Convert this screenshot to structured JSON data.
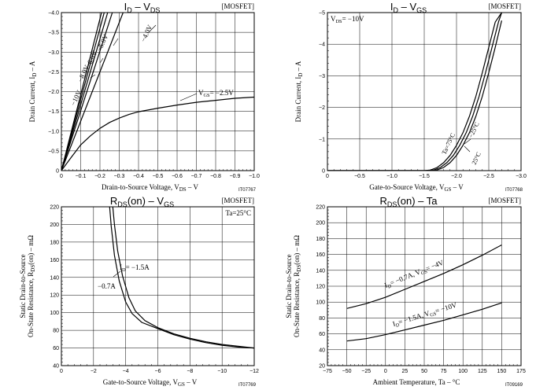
{
  "chart_data": [
    {
      "type": "line",
      "title_main": "I",
      "title_sub1": "D",
      "title_mid": " – V",
      "title_sub2": "DS",
      "tag": "[MOSFET]",
      "xlabel": "Drain-to-Source Voltage, V",
      "xlabel_sub": "DS",
      "xlabel_unit": " – V",
      "ylabel": "Drain Current, I",
      "ylabel_sub": "D",
      "ylabel_unit": " – A",
      "code": "IT07767",
      "xlim": [
        0,
        -1.0
      ],
      "ylim": [
        0,
        -4.0
      ],
      "xticks": [
        "0",
        "−0.1",
        "−0.2",
        "−0.3",
        "−0.4",
        "−0.5",
        "−0.6",
        "−0.7",
        "−0.8",
        "−0.9",
        "−1.0"
      ],
      "yticks": [
        "0",
        "−0.5",
        "−1.0",
        "−1.5",
        "−2.0",
        "−2.5",
        "−3.0",
        "−3.5",
        "−4.0"
      ],
      "series": [
        {
          "name": "−10V",
          "x": [
            0,
            -0.208
          ],
          "y": [
            0,
            -4.0
          ]
        },
        {
          "name": "−8.0V",
          "x": [
            0,
            -0.222
          ],
          "y": [
            0,
            -4.0
          ]
        },
        {
          "name": "−6.0V",
          "x": [
            0,
            -0.24
          ],
          "y": [
            0,
            -4.0
          ]
        },
        {
          "name": "−5.0V",
          "x": [
            0,
            -0.264
          ],
          "y": [
            0,
            -4.0
          ]
        },
        {
          "name": "−4.0V",
          "x": [
            0,
            -0.32
          ],
          "y": [
            0,
            -4.0
          ]
        },
        {
          "name": "−2.5V",
          "x": [
            0,
            -0.05,
            -0.1,
            -0.15,
            -0.2,
            -0.25,
            -0.3,
            -0.35,
            -0.4,
            -0.5,
            -0.6,
            -0.7,
            -0.8,
            -0.9,
            -1.0
          ],
          "y": [
            0,
            -0.33,
            -0.65,
            -0.88,
            -1.07,
            -1.22,
            -1.33,
            -1.42,
            -1.49,
            -1.58,
            -1.66,
            -1.73,
            -1.78,
            -1.83,
            -1.86
          ]
        }
      ],
      "labels": [
        {
          "text": "V",
          "sub": "GS",
          "rest": "= −2.5V"
        },
        {
          "text": "−10V"
        },
        {
          "text": "−8.0V"
        },
        {
          "text": "−6.0V"
        },
        {
          "text": "−5.0V"
        },
        {
          "text": "−4.0V"
        }
      ]
    },
    {
      "type": "line",
      "title_main": "I",
      "title_sub1": "D",
      "title_mid": " – V",
      "title_sub2": "GS",
      "tag": "[MOSFET]",
      "annotation": {
        "text": "V",
        "sub": "DS",
        "rest": "= −10V"
      },
      "xlabel": "Gate-to-Source Voltage, V",
      "xlabel_sub": "GS",
      "xlabel_unit": " – V",
      "ylabel": "Drain Current, I",
      "ylabel_sub": "D",
      "ylabel_unit": " – A",
      "code": "IT07768",
      "xlim": [
        0,
        -3.0
      ],
      "ylim": [
        0,
        -5
      ],
      "xticks": [
        "0",
        "−0.5",
        "−1.0",
        "−1.5",
        "−2.0",
        "−2.5",
        "−3.0"
      ],
      "yticks": [
        "0",
        "−1",
        "−2",
        "−3",
        "−4",
        "−5"
      ],
      "series": [
        {
          "name": "Ta=75°C",
          "x": [
            0,
            -1.5,
            -1.6,
            -1.7,
            -1.8,
            -1.9,
            -2.0,
            -2.1,
            -2.2,
            -2.3,
            -2.4,
            -2.5,
            -2.6,
            -2.7
          ],
          "y": [
            0,
            0,
            -0.02,
            -0.1,
            -0.25,
            -0.48,
            -0.8,
            -1.2,
            -1.72,
            -2.35,
            -3.1,
            -3.9,
            -4.7,
            -5.0
          ]
        },
        {
          "name": "25°C",
          "x": [
            0,
            -1.55,
            -1.65,
            -1.75,
            -1.85,
            -1.95,
            -2.05,
            -2.15,
            -2.25,
            -2.35,
            -2.45,
            -2.55,
            -2.65,
            -2.7
          ],
          "y": [
            0,
            0,
            -0.02,
            -0.1,
            -0.25,
            -0.48,
            -0.8,
            -1.2,
            -1.72,
            -2.35,
            -3.1,
            -3.9,
            -4.7,
            -5.0
          ]
        },
        {
          "name": "−25°C",
          "x": [
            0,
            -1.6,
            -1.7,
            -1.8,
            -1.9,
            -2.0,
            -2.1,
            -2.2,
            -2.3,
            -2.4,
            -2.5,
            -2.6,
            -2.7
          ],
          "y": [
            0,
            0,
            -0.02,
            -0.1,
            -0.25,
            -0.48,
            -0.8,
            -1.2,
            -1.72,
            -2.35,
            -3.1,
            -3.9,
            -4.75
          ]
        }
      ],
      "labels": [
        {
          "text": "Ta=75°C"
        },
        {
          "text": "25°C"
        },
        {
          "text": "−25°C"
        }
      ]
    },
    {
      "type": "line",
      "title_main": "R",
      "title_sub1": "DS",
      "title_mid": "(on) – V",
      "title_sub2": "GS",
      "tag": "[MOSFET]",
      "annotation": {
        "text": "Ta=25°C"
      },
      "xlabel": "Gate-to-Source Voltage, V",
      "xlabel_sub": "GS",
      "xlabel_unit": " – V",
      "ylabel_line1": "Static Drain-to-Source",
      "ylabel_line2": "On-State Resistance, R",
      "ylabel_sub": "DS",
      "ylabel_unit": "(on) – mΩ",
      "code": "IT07769",
      "xlim": [
        0,
        -12
      ],
      "ylim": [
        40,
        220
      ],
      "xticks": [
        "0",
        "−2",
        "−4",
        "−6",
        "−8",
        "−10",
        "−12"
      ],
      "yticks": [
        "40",
        "60",
        "80",
        "100",
        "120",
        "140",
        "160",
        "180",
        "200",
        "220"
      ],
      "series": [
        {
          "name": "I_D= −1.5A",
          "x": [
            -3.2,
            -3.3,
            -3.5,
            -3.8,
            -4.2,
            -4.6,
            -5.2,
            -6,
            -7,
            -8,
            -9,
            -10,
            -11,
            -12
          ],
          "y": [
            220,
            200,
            170,
            142,
            117,
            102,
            91,
            83,
            76,
            71,
            67,
            64,
            62,
            60
          ]
        },
        {
          "name": "−0.7A",
          "x": [
            -3.0,
            -3.1,
            -3.3,
            -3.6,
            -4.0,
            -4.4,
            -5.0,
            -6,
            -7,
            -8,
            -9,
            -10,
            -11,
            -12
          ],
          "y": [
            220,
            198,
            165,
            136,
            112,
            99,
            89,
            82,
            75,
            70,
            66,
            63,
            61,
            60
          ]
        }
      ],
      "labels": [
        {
          "text": "I",
          "sub": "D",
          "rest": "= −1.5A"
        },
        {
          "text": "−0.7A"
        }
      ]
    },
    {
      "type": "line",
      "title_main": "R",
      "title_sub1": "DS",
      "title_mid": "(on) – Ta",
      "title_sub2": "",
      "tag": "[MOSFET]",
      "xlabel": "Ambient Temperature, Ta – °C",
      "ylabel_line1": "Static Drain-to-Source",
      "ylabel_line2": "On-State Resistance, R",
      "ylabel_sub": "DS",
      "ylabel_unit": "(on) – mΩ",
      "code": "IT09169",
      "xlim": [
        -75,
        175
      ],
      "ylim": [
        20,
        220
      ],
      "xticks": [
        "−75",
        "−50",
        "−25",
        "0",
        "25",
        "50",
        "75",
        "100",
        "125",
        "150",
        "175"
      ],
      "yticks": [
        "20",
        "40",
        "60",
        "80",
        "100",
        "120",
        "140",
        "160",
        "180",
        "200",
        "220"
      ],
      "series": [
        {
          "name": "I_D= −0.7A, V_GS= −4V",
          "x": [
            -50,
            -25,
            0,
            25,
            50,
            75,
            100,
            125,
            150
          ],
          "y": [
            92,
            98,
            106,
            116,
            126,
            136,
            147,
            159,
            172
          ]
        },
        {
          "name": "I_D= −1.5A, V_GS= −10V",
          "x": [
            -50,
            -25,
            0,
            25,
            50,
            75,
            100,
            125,
            150
          ],
          "y": [
            51,
            54,
            59,
            65,
            71,
            77,
            84,
            91,
            99
          ]
        }
      ],
      "labels": [
        {
          "text": "I",
          "sub": "D",
          "rest": "= −0.7A, V",
          "sub2": "GS",
          "rest2": "= −4V"
        },
        {
          "text": "I",
          "sub": "D",
          "rest": "= −1.5A, V",
          "sub2": "GS",
          "rest2": "= −10V"
        }
      ]
    }
  ]
}
